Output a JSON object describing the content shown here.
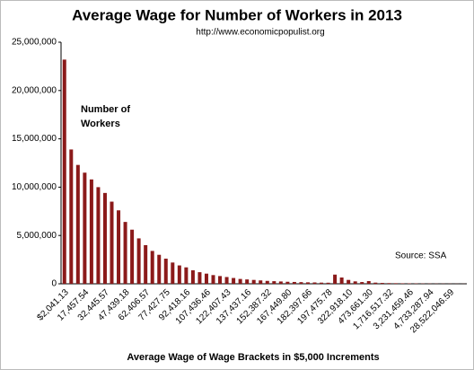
{
  "chart_data": {
    "type": "bar",
    "title": "Average Wage for Number of Workers  in 2013",
    "subtitle": "http://www.economicpopulist.org",
    "x_label": "Average Wage of Wage Brackets  in $5,000 Increments",
    "annotation": "Source: SSA",
    "categories": [
      "$2,041.13",
      null,
      null,
      "17,457.54",
      null,
      null,
      "32,445.57",
      null,
      null,
      "47,439.18",
      null,
      null,
      "62,406.57",
      null,
      null,
      "77,427.75",
      null,
      null,
      "92,418.16",
      null,
      null,
      "107,436.46",
      null,
      null,
      "122,407.43",
      null,
      null,
      "137,437.16",
      null,
      null,
      "152,387.32",
      null,
      null,
      "167,449.80",
      null,
      null,
      "182,397.66",
      null,
      null,
      "197,475.78",
      null,
      null,
      "322,918.10",
      null,
      null,
      "473,661.30",
      null,
      null,
      "1,716,517.32",
      null,
      null,
      "3,231,459.46",
      null,
      null,
      "4,733,287.94",
      null,
      null,
      "28,522,046.59",
      null,
      null
    ],
    "series": [
      {
        "name": "Number of Workers",
        "color": "#8b1a1a",
        "values": [
          23200000,
          13900000,
          12300000,
          11500000,
          10800000,
          10000000,
          9400000,
          8500000,
          7600000,
          6400000,
          5600000,
          4700000,
          4000000,
          3400000,
          3000000,
          2600000,
          2200000,
          1900000,
          1700000,
          1400000,
          1200000,
          1050000,
          900000,
          800000,
          700000,
          600000,
          500000,
          450000,
          400000,
          350000,
          300000,
          270000,
          240000,
          210000,
          190000,
          170000,
          150000,
          140000,
          120000,
          110000,
          950000,
          650000,
          400000,
          250000,
          180000,
          280000,
          120000,
          90000,
          70000,
          60000,
          50000,
          40000,
          35000,
          30000,
          25000,
          20000,
          18000,
          15000,
          12000,
          10000
        ]
      }
    ],
    "ylim": [
      0,
      25000000
    ],
    "yticks": [
      0,
      {
        "value": 5000000,
        "label": "5,000,000"
      },
      {
        "value": 10000000,
        "label": "10,000,000"
      },
      {
        "value": 15000000,
        "label": "15,000,000"
      },
      {
        "value": 20000000,
        "label": "20,000,000"
      },
      {
        "value": 25000000,
        "label": "25,000,000"
      }
    ],
    "grid": false
  }
}
